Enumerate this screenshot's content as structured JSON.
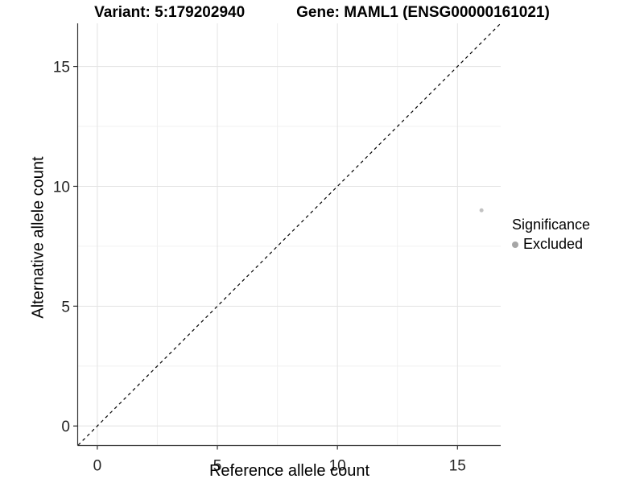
{
  "chart_data": {
    "type": "scatter",
    "title": "Variant: 5:179202940        Gene: MAML1 (ENSG00000161021)",
    "title_left": "Variant: 5:179202940",
    "title_right": "Gene: MAML1 (ENSG00000161021)",
    "xlabel": "Reference allele count",
    "ylabel": "Alternative allele count",
    "xlim": [
      -0.8,
      16.8
    ],
    "ylim": [
      -0.8,
      16.8
    ],
    "x_ticks": [
      0,
      5,
      10,
      15
    ],
    "y_ticks": [
      0,
      5,
      10,
      15
    ],
    "x_minor_ticks": [
      2.5,
      7.5,
      12.5
    ],
    "y_minor_ticks": [
      2.5,
      7.5,
      12.5
    ],
    "grid": "major and minor gridlines on white panel",
    "reference_line": {
      "type": "identity y=x",
      "style": "dashed",
      "color": "#000000"
    },
    "series": [
      {
        "name": "Excluded",
        "color": "#c2c2c2",
        "points": [
          [
            16,
            9
          ]
        ],
        "point_radius": 2.5
      }
    ],
    "legend": {
      "title": "Significance",
      "position": "right",
      "entries": [
        {
          "label": "Excluded",
          "color": "#a6a6a6"
        }
      ]
    },
    "colors": {
      "axis_line": "#333333",
      "tick_mark": "#333333",
      "tick_label": "#262626",
      "grid_major": "#e3e3e3",
      "grid_minor": "#f0f0f0",
      "background": "#ffffff"
    }
  }
}
